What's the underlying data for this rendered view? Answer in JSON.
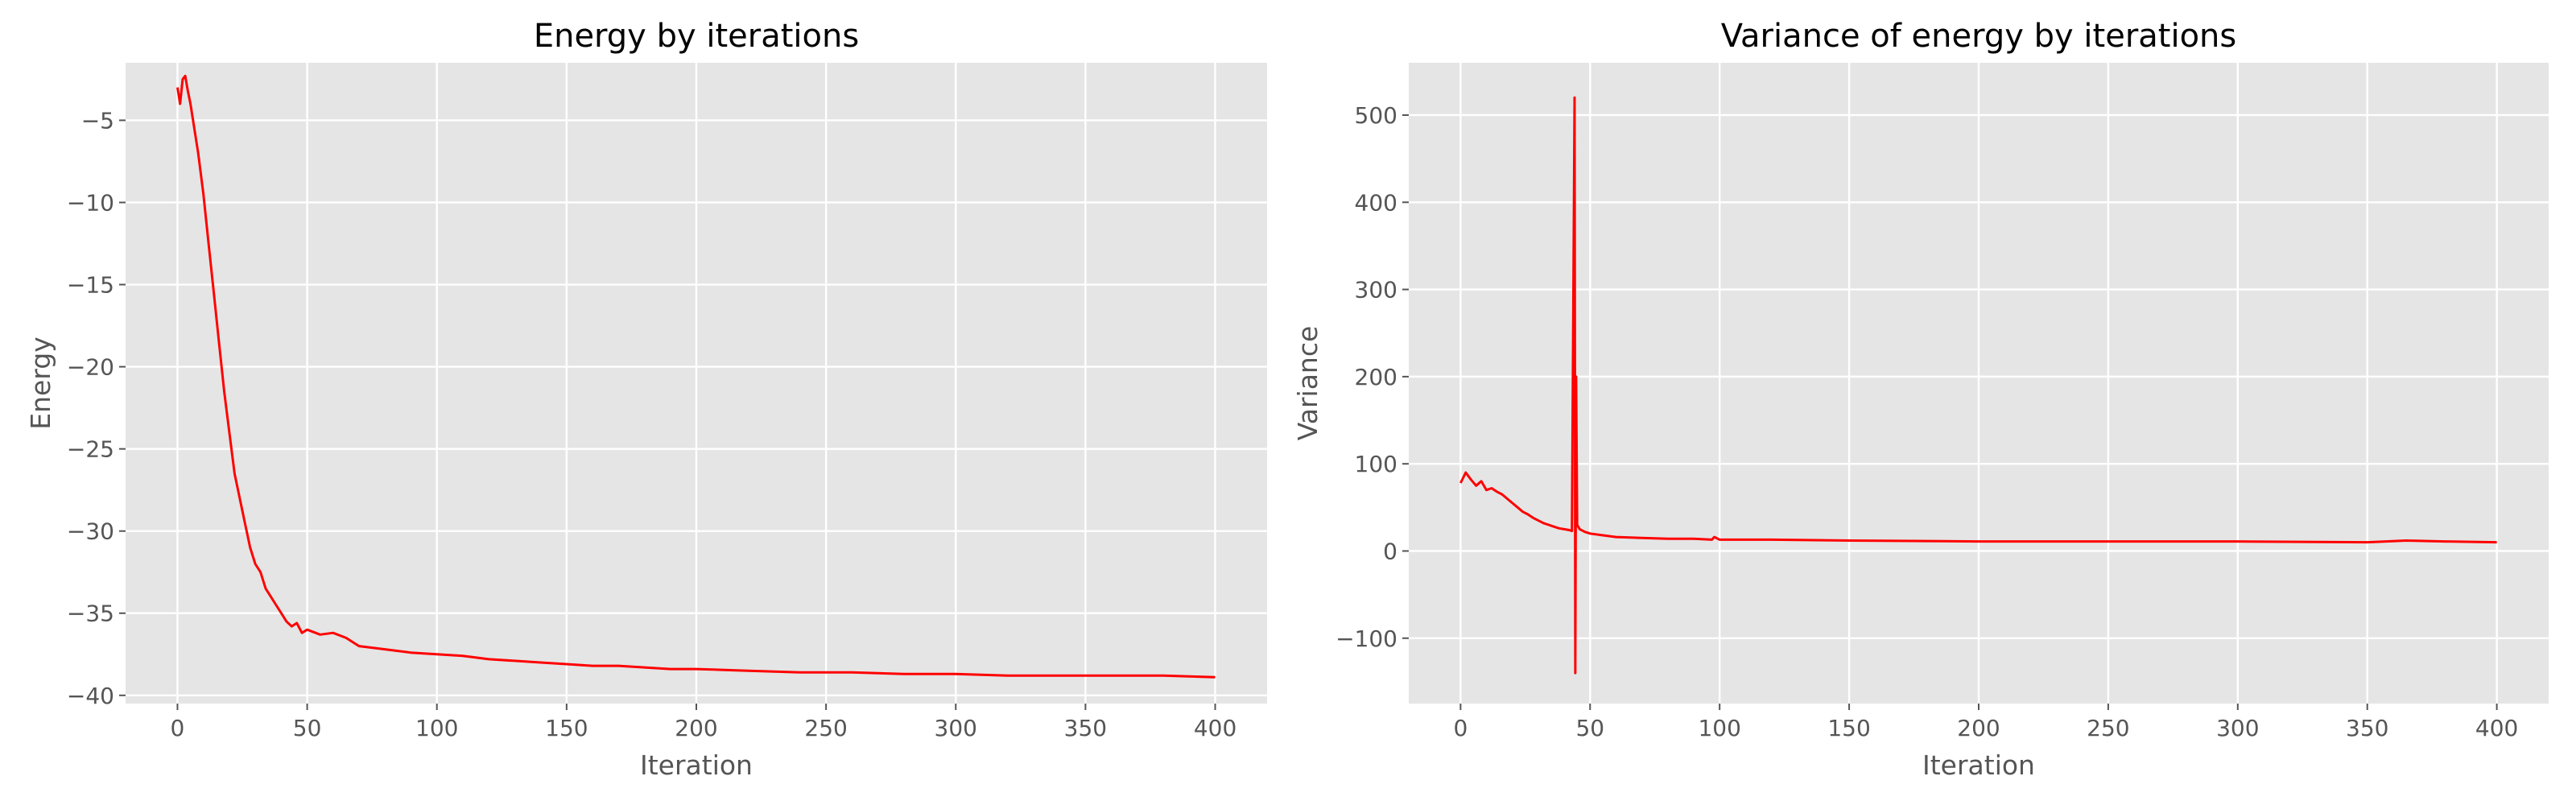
{
  "chart_data": [
    {
      "type": "line",
      "title": "Energy by iterations",
      "xlabel": "Iteration",
      "ylabel": "Energy",
      "xlim": [
        -20,
        420
      ],
      "ylim": [
        -40.5,
        -1.5
      ],
      "xticks": [
        0,
        50,
        100,
        150,
        200,
        250,
        300,
        350,
        400
      ],
      "yticks": [
        -40,
        -35,
        -30,
        -25,
        -20,
        -15,
        -10,
        -5
      ],
      "grid": true,
      "legend": "none",
      "colors": {
        "line": "#ff0000",
        "background": "#e5e5e5",
        "grid": "#ffffff"
      },
      "series": [
        {
          "x": [
            0,
            1,
            2,
            3,
            4,
            5,
            6,
            8,
            10,
            12,
            14,
            16,
            18,
            20,
            22,
            24,
            26,
            28,
            30,
            32,
            34,
            36,
            38,
            40,
            42,
            44,
            46,
            48,
            50,
            55,
            60,
            65,
            70,
            75,
            80,
            90,
            100,
            110,
            120,
            130,
            140,
            150,
            160,
            170,
            180,
            190,
            200,
            220,
            240,
            260,
            280,
            300,
            320,
            340,
            360,
            380,
            400
          ],
          "y": [
            -3.0,
            -4.0,
            -2.5,
            -2.3,
            -3.2,
            -4.0,
            -5.0,
            -7.0,
            -9.5,
            -12.5,
            -15.5,
            -18.5,
            -21.5,
            -24.0,
            -26.5,
            -28.0,
            -29.5,
            -31.0,
            -32.0,
            -32.5,
            -33.5,
            -34.0,
            -34.5,
            -35.0,
            -35.5,
            -35.8,
            -35.6,
            -36.2,
            -36.0,
            -36.3,
            -36.2,
            -36.5,
            -37.0,
            -37.1,
            -37.2,
            -37.4,
            -37.5,
            -37.6,
            -37.8,
            -37.9,
            -38.0,
            -38.1,
            -38.2,
            -38.2,
            -38.3,
            -38.4,
            -38.4,
            -38.5,
            -38.6,
            -38.6,
            -38.7,
            -38.7,
            -38.8,
            -38.8,
            -38.8,
            -38.8,
            -38.9
          ]
        }
      ]
    },
    {
      "type": "line",
      "title": "Variance of energy by iterations",
      "xlabel": "Iteration",
      "ylabel": "Variance",
      "xlim": [
        -20,
        420
      ],
      "ylim": [
        -175,
        560
      ],
      "xticks": [
        0,
        50,
        100,
        150,
        200,
        250,
        300,
        350,
        400
      ],
      "yticks": [
        -100,
        0,
        100,
        200,
        300,
        400,
        500
      ],
      "grid": true,
      "legend": "none",
      "colors": {
        "line": "#ff0000",
        "background": "#e5e5e5",
        "grid": "#ffffff"
      },
      "series": [
        {
          "x": [
            0,
            2,
            4,
            6,
            8,
            10,
            12,
            14,
            16,
            18,
            20,
            22,
            24,
            26,
            28,
            30,
            32,
            34,
            36,
            38,
            40,
            42,
            43,
            44,
            44.3,
            44.6,
            45,
            46,
            48,
            50,
            55,
            60,
            70,
            80,
            90,
            97,
            98,
            100,
            120,
            150,
            200,
            250,
            300,
            350,
            365,
            380,
            400
          ],
          "y": [
            78,
            90,
            82,
            75,
            80,
            70,
            72,
            68,
            65,
            60,
            55,
            50,
            45,
            42,
            38,
            35,
            32,
            30,
            28,
            26,
            25,
            24,
            23,
            520,
            -140,
            200,
            30,
            25,
            22,
            20,
            18,
            16,
            15,
            14,
            14,
            13,
            16,
            13,
            13,
            12,
            11,
            11,
            11,
            10,
            12,
            11,
            10
          ]
        }
      ]
    }
  ]
}
